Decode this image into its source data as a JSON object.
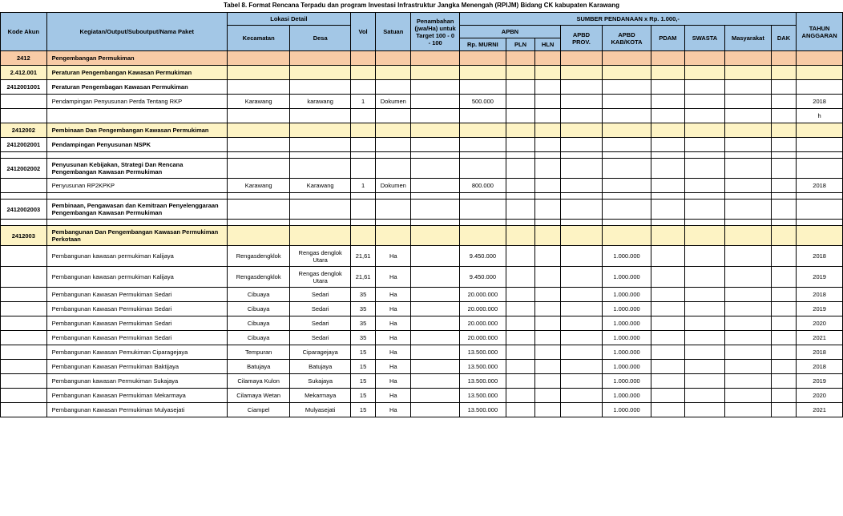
{
  "title": "Tabel 8. Format Rencana Terpadu dan program Investasi Infrastruktur Jangka Menengah (RPIJM) Bidang CK kabupaten Karawang",
  "headers": {
    "kode": "Kode Akun",
    "kegiatan": "Kegiatan/Output/Suboutput/Nama Paket",
    "lokasi": "Lokasi Detail",
    "kec": "Kecamatan",
    "desa": "Desa",
    "vol": "Vol",
    "satuan": "Satuan",
    "penambahan": "Penambahan (jwa/Ha) untuk Target 100 - 0 - 100",
    "sumber": "SUMBER PENDANAAN x Rp.  1.000,-",
    "apbn": "APBN",
    "murni": "Rp. MURNI",
    "pln": "PLN",
    "hln": "HLN",
    "prov": "APBD PROV.",
    "kab": "APBD KAB/KOTA",
    "pdam": "PDAM",
    "swasta": "SWASTA",
    "masy": "Masyarakat",
    "dak": "DAK",
    "tahun": "TAHUN ANGGARAN"
  },
  "rows": [
    {
      "type": "orange",
      "kode": "2412",
      "kegiatan": "Pengembangan Permukiman"
    },
    {
      "type": "yellow",
      "kode": "2.412.001",
      "kegiatan": "Peraturan Pengembangan Kawasan Permukiman",
      "bold": true
    },
    {
      "type": "plain",
      "kode": "2412001001",
      "kegiatan": "Peraturan Pengembagan Kawasan Permukiman",
      "bold": true
    },
    {
      "type": "plain",
      "kegiatan": "Pendampingan Penyusunan Perda Tentang RKP",
      "kec": "Karawang",
      "desa": "karawang",
      "vol": "1",
      "sat": "Dokumen",
      "murni": "500.000",
      "tahun": "2018"
    },
    {
      "type": "plain",
      "tahun": "h"
    },
    {
      "type": "yellow",
      "kode": "2412002",
      "kegiatan": "Pembinaan Dan Pengembangan Kawasan Permukiman",
      "bold": true
    },
    {
      "type": "plain",
      "kode": "2412002001",
      "kegiatan": "Pendampingan Penyusunan NSPK",
      "bold": true
    },
    {
      "type": "spacer"
    },
    {
      "type": "plain",
      "kode": "2412002002",
      "kegiatan": "Penyusunan Kebijakan, Strategi Dan Rencana Pengembangan Kawasan Permukiman",
      "bold": true
    },
    {
      "type": "plain",
      "kegiatan": "Penyusunan RP2KPKP",
      "kec": "Karawang",
      "desa": "Karawang",
      "vol": "1",
      "sat": "Dokumen",
      "murni": "800.000",
      "tahun": "2018"
    },
    {
      "type": "spacer"
    },
    {
      "type": "plain",
      "kode": "2412002003",
      "kegiatan": "Pembinaan, Pengawasan dan Kemitraan Penyelenggaraan Pengembangan Kawasan Permukiman",
      "bold": true
    },
    {
      "type": "spacer"
    },
    {
      "type": "yellow",
      "kode": "2412003",
      "kegiatan": "Pembangunan Dan Pengembangan Kawasan Permukiman Perkotaan",
      "bold": true
    },
    {
      "type": "plain",
      "kegiatan": "Pembangunan kawasan permukiman Kalijaya",
      "kec": "Rengasdengklok",
      "desa": "Rengas denglok Utara",
      "vol": "21,61",
      "sat": "Ha",
      "murni": "9.450.000",
      "kab": "1.000.000",
      "tahun": "2018",
      "tall": true
    },
    {
      "type": "plain",
      "kegiatan": "Pembangunan kawasan permukiman Kalijaya",
      "kec": "Rengasdengklok",
      "desa": "Rengas denglok Utara",
      "vol": "21,61",
      "sat": "Ha",
      "murni": "9.450.000",
      "kab": "1.000.000",
      "tahun": "2019",
      "tall": true
    },
    {
      "type": "plain",
      "kegiatan": "Pembangunan Kawasan Permukiman Sedari",
      "kec": "Cibuaya",
      "desa": "Sedari",
      "vol": "35",
      "sat": "Ha",
      "murni": "20.000.000",
      "kab": "1.000.000",
      "tahun": "2018"
    },
    {
      "type": "plain",
      "kegiatan": "Pembangunan Kawasan Permukiman Sedari",
      "kec": "Cibuaya",
      "desa": "Sedari",
      "vol": "35",
      "sat": "Ha",
      "murni": "20.000.000",
      "kab": "1.000.000",
      "tahun": "2019"
    },
    {
      "type": "plain",
      "kegiatan": "Pembangunan Kawasan Permukiman Sedari",
      "kec": "Cibuaya",
      "desa": "Sedari",
      "vol": "35",
      "sat": "Ha",
      "murni": "20.000.000",
      "kab": "1.000.000",
      "tahun": "2020"
    },
    {
      "type": "plain",
      "kegiatan": "Pembangunan Kawasan Permukiman Sedari",
      "kec": "Cibuaya",
      "desa": "Sedari",
      "vol": "35",
      "sat": "Ha",
      "murni": "20.000.000",
      "kab": "1.000.000",
      "tahun": "2021"
    },
    {
      "type": "plain",
      "kegiatan": "Pembangunan Kawasan Pemukiman Ciparagejaya",
      "kec": "Tempuran",
      "desa": "Ciparagejaya",
      "vol": "15",
      "sat": "Ha",
      "murni": "13.500.000",
      "kab": "1.000.000",
      "tahun": "2018"
    },
    {
      "type": "plain",
      "kegiatan": "Pembangunan Kawasan Permukiman Baktijaya",
      "kec": "Batujaya",
      "desa": "Batujaya",
      "vol": "15",
      "sat": "Ha",
      "murni": "13.500.000",
      "kab": "1.000.000",
      "tahun": "2018"
    },
    {
      "type": "plain",
      "kegiatan": "Pembangunan kawasan Permukiman Sukajaya",
      "kec": "Cilamaya Kulon",
      "desa": "Sukajaya",
      "vol": "15",
      "sat": "Ha",
      "murni": "13.500.000",
      "kab": "1.000.000",
      "tahun": "2019"
    },
    {
      "type": "plain",
      "kegiatan": "Pembangunan Kawasan Permukiman Mekarmaya",
      "kec": "Cilamaya Wetan",
      "desa": "Mekarmaya",
      "vol": "15",
      "sat": "Ha",
      "murni": "13.500.000",
      "kab": "1.000.000",
      "tahun": "2020"
    },
    {
      "type": "plain",
      "kegiatan": "Pembangunan Kawasan Permukiman Mulyasejati",
      "kec": "Ciampel",
      "desa": "Mulyasejati",
      "vol": "15",
      "sat": "Ha",
      "murni": "13.500.000",
      "kab": "1.000.000",
      "tahun": "2021"
    }
  ]
}
